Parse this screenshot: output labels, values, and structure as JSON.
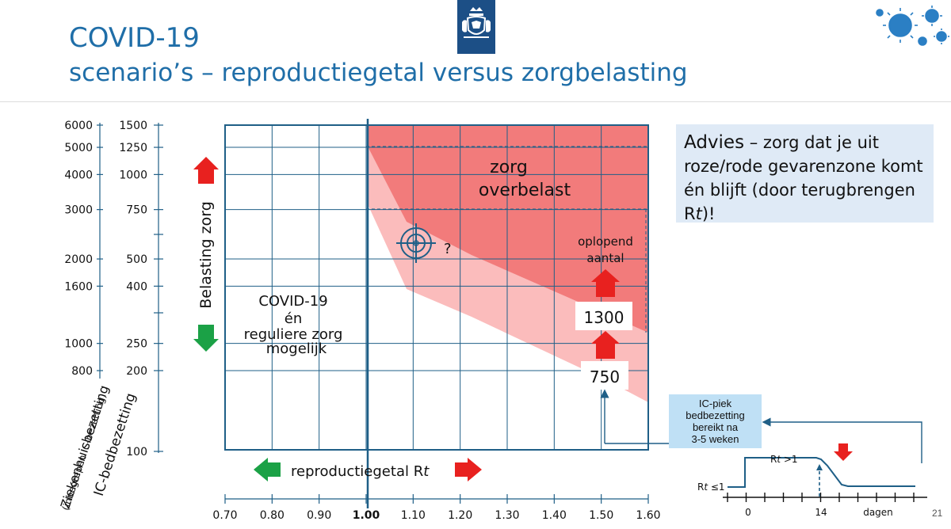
{
  "slide": {
    "title_line1": "COVID-19",
    "title_line2": "scenario’s – reproductiegetal versus zorgbelasting",
    "page_number": "21",
    "logo_icon": "rijksoverheid-emblem-icon",
    "virus_icon": "coronavirus-icon"
  },
  "advies": {
    "lead": "Advies",
    "text": " – zorg dat je uit roze/rode gevarenzone komt én blijft (door terugbrengen R",
    "italic_t": "t",
    "end": ")!"
  },
  "chart_data": {
    "type": "diagram",
    "x_axis": {
      "label_prefix": "reproductiegetal R",
      "label_italic": "t",
      "ticks": [
        "0.70",
        "0.80",
        "0.90",
        "1.00",
        "1.10",
        "1.20",
        "1.30",
        "1.40",
        "1.50",
        "1.60"
      ],
      "tick_values": [
        0.7,
        0.8,
        0.9,
        1.0,
        1.1,
        1.2,
        1.3,
        1.4,
        1.5,
        1.6
      ],
      "bold_tick": "1.00",
      "xlim": [
        0.7,
        1.6
      ]
    },
    "y_axis": {
      "label": "Belasting zorg",
      "hospital_ticks": [
        "6000",
        "5000",
        "4000",
        "3000",
        "2000",
        "1600",
        "1000",
        "800"
      ],
      "hospital_values": [
        6000,
        5000,
        4000,
        3000,
        2000,
        1600,
        1000,
        800
      ],
      "ic_ticks": [
        "1500",
        "1250",
        "1000",
        "750",
        "500",
        "400",
        "250",
        "200",
        "100"
      ],
      "ic_values": [
        1500,
        1250,
        1000,
        750,
        500,
        400,
        250,
        200,
        100
      ],
      "hospital_label": "Ziekenhuisbezetting",
      "hospital_sublabel": "(inbegrepen IC-bezetting)",
      "ic_label": "IC-bedbezetting",
      "scale": "log"
    },
    "zones": {
      "overload_line1": "zorg",
      "overload_line2": "overbelast",
      "safe_line1": "COVID-19",
      "safe_line2": "én",
      "safe_line3": "reguliere zorg",
      "safe_line4": "mogelijk",
      "overload_color": "#f27b7b",
      "danger_color": "#fbbcbc",
      "axis_color": "#1f5f87"
    },
    "target": {
      "rt": 1.1,
      "ic": 500,
      "label": "?"
    },
    "markers": {
      "rising_line1": "oplopend",
      "rising_line2": "aantal",
      "ic_1300": "1300",
      "ic_750": "750",
      "arrow_up_color": "#e8211f",
      "arrow_down_color": "#1ba146"
    }
  },
  "ic_peak": {
    "line1": "IC-piek",
    "line2": "bedbezetting",
    "line3": "bereikt na",
    "line4": "3-5 weken"
  },
  "mini_chart": {
    "rt_high_prefix": "R",
    "rt_high_italic": "t",
    "rt_high_suffix": " >1",
    "rt_low_prefix": "R",
    "rt_low_italic": "t",
    "rt_low_suffix": " ≤1",
    "tick_0": "0",
    "tick_14": "14",
    "axis_label": "dagen"
  }
}
